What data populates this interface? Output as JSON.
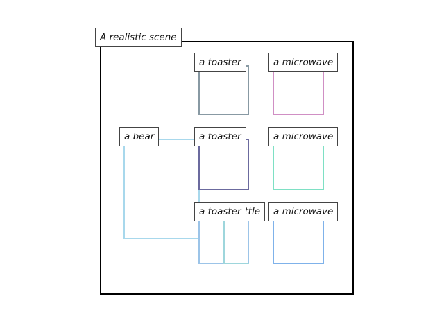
{
  "scene_title": "A realistic scene",
  "objects": [
    {
      "id": "toaster-1",
      "label": "a toaster",
      "color": "#8899a3"
    },
    {
      "id": "microwave-1",
      "label": "a microwave",
      "color": "#d08fc4"
    },
    {
      "id": "bear",
      "label": "a bear",
      "color": "#a8d8ec"
    },
    {
      "id": "toaster-2",
      "label": "a toaster",
      "color": "#6b6a9e"
    },
    {
      "id": "microwave-2",
      "label": "a microwave",
      "color": "#7ee0c4"
    },
    {
      "id": "bottle",
      "label": "a bottle",
      "color": "#9ed6dc"
    },
    {
      "id": "toaster-3",
      "label": "a toaster",
      "color": "#9cc4e8"
    },
    {
      "id": "microwave-3",
      "label": "a microwave",
      "color": "#7fb2ea"
    }
  ]
}
